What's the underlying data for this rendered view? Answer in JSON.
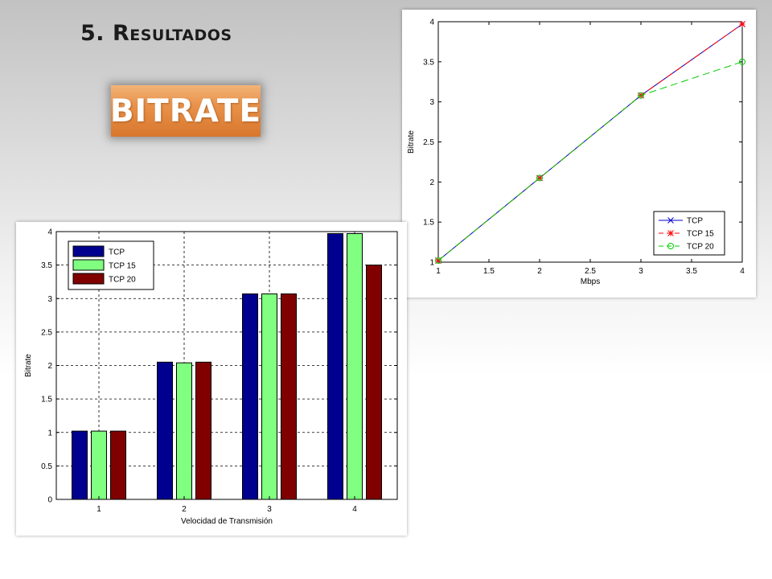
{
  "slide": {
    "title": "5. Resultados",
    "badge": "BITRATE"
  },
  "chart_data": [
    {
      "type": "line",
      "x": [
        1,
        2,
        3,
        4
      ],
      "xlabel": "Mbps",
      "ylabel": "Bitrate",
      "xlim": [
        1,
        4
      ],
      "ylim": [
        1,
        4
      ],
      "xticks": [
        "1",
        "1.5",
        "2",
        "2.5",
        "3",
        "3.5",
        "4"
      ],
      "yticks": [
        "1",
        "1.5",
        "2",
        "2.5",
        "3",
        "3.5",
        "4"
      ],
      "grid": false,
      "legend_position": "bottom-right",
      "series": [
        {
          "name": "TCP",
          "values": [
            1.02,
            2.05,
            3.08,
            3.97
          ],
          "color": "#0000cc",
          "marker": "x",
          "dash": "solid"
        },
        {
          "name": "TCP 15",
          "values": [
            1.02,
            2.05,
            3.08,
            3.97
          ],
          "color": "#ff0000",
          "marker": "*",
          "dash": "dashed"
        },
        {
          "name": "TCP 20",
          "values": [
            1.02,
            2.05,
            3.08,
            3.5
          ],
          "color": "#00cc00",
          "marker": "o",
          "dash": "dashed"
        }
      ]
    },
    {
      "type": "bar",
      "categories": [
        "1",
        "2",
        "3",
        "4"
      ],
      "xlabel": "Velocidad de Transmisión",
      "ylabel": "Bitrate",
      "ylim": [
        0,
        4
      ],
      "yticks": [
        "0",
        "0.5",
        "1",
        "1.5",
        "2",
        "2.5",
        "3",
        "3.5",
        "4"
      ],
      "grid": true,
      "legend_position": "top-left",
      "series": [
        {
          "name": "TCP",
          "values": [
            1.02,
            2.05,
            3.07,
            3.97
          ],
          "color": "#00008f"
        },
        {
          "name": "TCP 15",
          "values": [
            1.02,
            2.04,
            3.07,
            3.97
          ],
          "color": "#80ff80"
        },
        {
          "name": "TCP 20",
          "values": [
            1.02,
            2.05,
            3.07,
            3.5
          ],
          "color": "#800000"
        }
      ]
    }
  ]
}
